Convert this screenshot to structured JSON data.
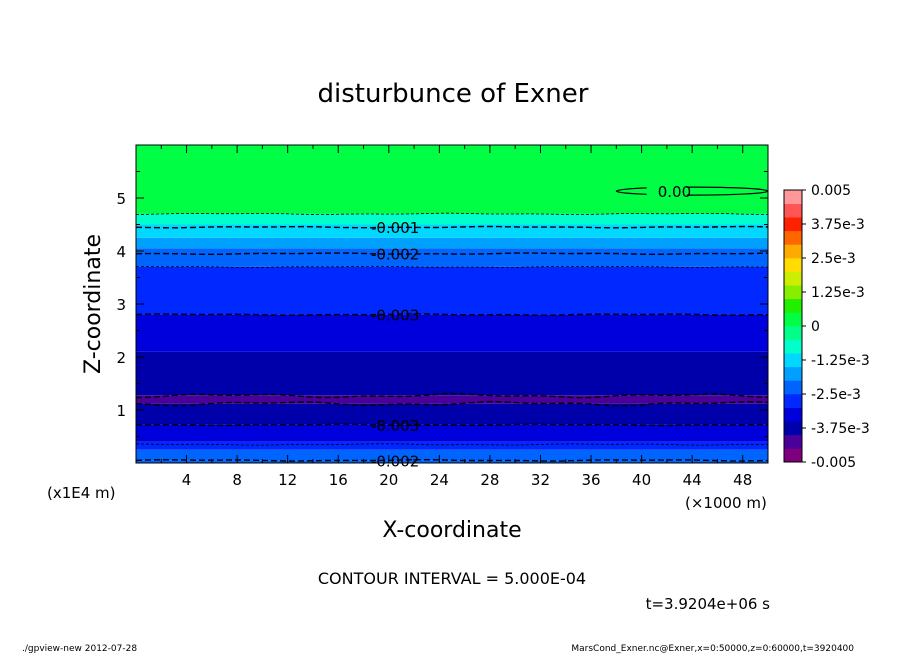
{
  "chart_data": {
    "type": "contour",
    "title": "disturbunce of Exner",
    "xlabel": "X-coordinate",
    "ylabel": "Z-coordinate",
    "x_unit_label": "(×1000 m)",
    "y_unit_label": "(x1E4 m)",
    "xlim": [
      0,
      50
    ],
    "ylim": [
      0,
      6
    ],
    "x_ticks": [
      "4",
      "8",
      "12",
      "16",
      "20",
      "24",
      "28",
      "32",
      "36",
      "40",
      "44",
      "48"
    ],
    "x_tick_values": [
      4,
      8,
      12,
      16,
      20,
      24,
      28,
      32,
      36,
      40,
      44,
      48
    ],
    "y_ticks": [
      "1",
      "2",
      "3",
      "4",
      "5"
    ],
    "y_tick_values": [
      1,
      2,
      3,
      4,
      5
    ],
    "contour_interval_text": "CONTOUR INTERVAL = 5.000E-04",
    "time_text": "t=3.9204e+06 s",
    "colorbar": {
      "range": [
        -0.005,
        0.005
      ],
      "tick_labels": [
        "0.005",
        "3.75e-3",
        "2.5e-3",
        "1.25e-3",
        "0",
        "-1.25e-3",
        "-2.5e-3",
        "-3.75e-3",
        "-0.005"
      ],
      "tick_values": [
        0.005,
        0.00375,
        0.0025,
        0.00125,
        0,
        -0.00125,
        -0.0025,
        -0.00375,
        -0.005
      ],
      "colors": [
        "#7f007f",
        "#4b0099",
        "#0000aa",
        "#0000dd",
        "#0028ff",
        "#0064ff",
        "#00a0ff",
        "#00d8ff",
        "#00ffcc",
        "#00ff88",
        "#00ff44",
        "#22ee00",
        "#88ee00",
        "#ccee00",
        "#ffdd00",
        "#ffaa00",
        "#ff6600",
        "#ff2200",
        "#ff5555",
        "#ff9999"
      ]
    },
    "bands": [
      {
        "z0": 0.0,
        "z1": 0.05,
        "value": -0.0025
      },
      {
        "z0": 0.05,
        "z1": 0.25,
        "value": -0.0022
      },
      {
        "z0": 0.25,
        "z1": 0.4,
        "value": -0.0027
      },
      {
        "z0": 0.4,
        "z1": 0.72,
        "value": -0.0032
      },
      {
        "z0": 0.72,
        "z1": 1.12,
        "value": -0.0037
      },
      {
        "z0": 1.12,
        "z1": 1.28,
        "value": -0.0042
      },
      {
        "z0": 1.28,
        "z1": 2.1,
        "value": -0.0037
      },
      {
        "z0": 2.1,
        "z1": 2.8,
        "value": -0.0032
      },
      {
        "z0": 2.8,
        "z1": 3.7,
        "value": -0.0029
      },
      {
        "z0": 3.7,
        "z1": 4.05,
        "value": -0.0022
      },
      {
        "z0": 4.05,
        "z1": 4.25,
        "value": -0.0016
      },
      {
        "z0": 4.25,
        "z1": 4.5,
        "value": -0.0012
      },
      {
        "z0": 4.5,
        "z1": 4.7,
        "value": -0.0007
      },
      {
        "z0": 4.7,
        "z1": 6.0,
        "value": 0.0001
      }
    ],
    "contours": [
      {
        "z": 0.05,
        "style": "dashed",
        "label": "-0.002"
      },
      {
        "z": 0.35,
        "style": "thin",
        "label": ""
      },
      {
        "z": 0.72,
        "style": "dashed",
        "label": "-0.003"
      },
      {
        "z": 1.12,
        "style": "dashed",
        "label": ""
      },
      {
        "z": 1.27,
        "style": "dashed",
        "label": ""
      },
      {
        "z": 2.8,
        "style": "dashed",
        "label": "-0.003"
      },
      {
        "z": 3.7,
        "style": "thin",
        "label": ""
      },
      {
        "z": 3.95,
        "style": "dashed",
        "label": "-0.002"
      },
      {
        "z": 4.45,
        "style": "dashed",
        "label": "-0.001"
      },
      {
        "z": 4.7,
        "style": "thin",
        "label": ""
      }
    ],
    "zero_contour": {
      "x_center": 44,
      "z": 5.13,
      "half_width": 6.0,
      "label": "0.00"
    }
  },
  "footer": {
    "left": "./gpview-new  2012-07-28",
    "right": "MarsCond_Exner.nc@Exner,x=0:50000,z=0:60000,t=3920400"
  }
}
